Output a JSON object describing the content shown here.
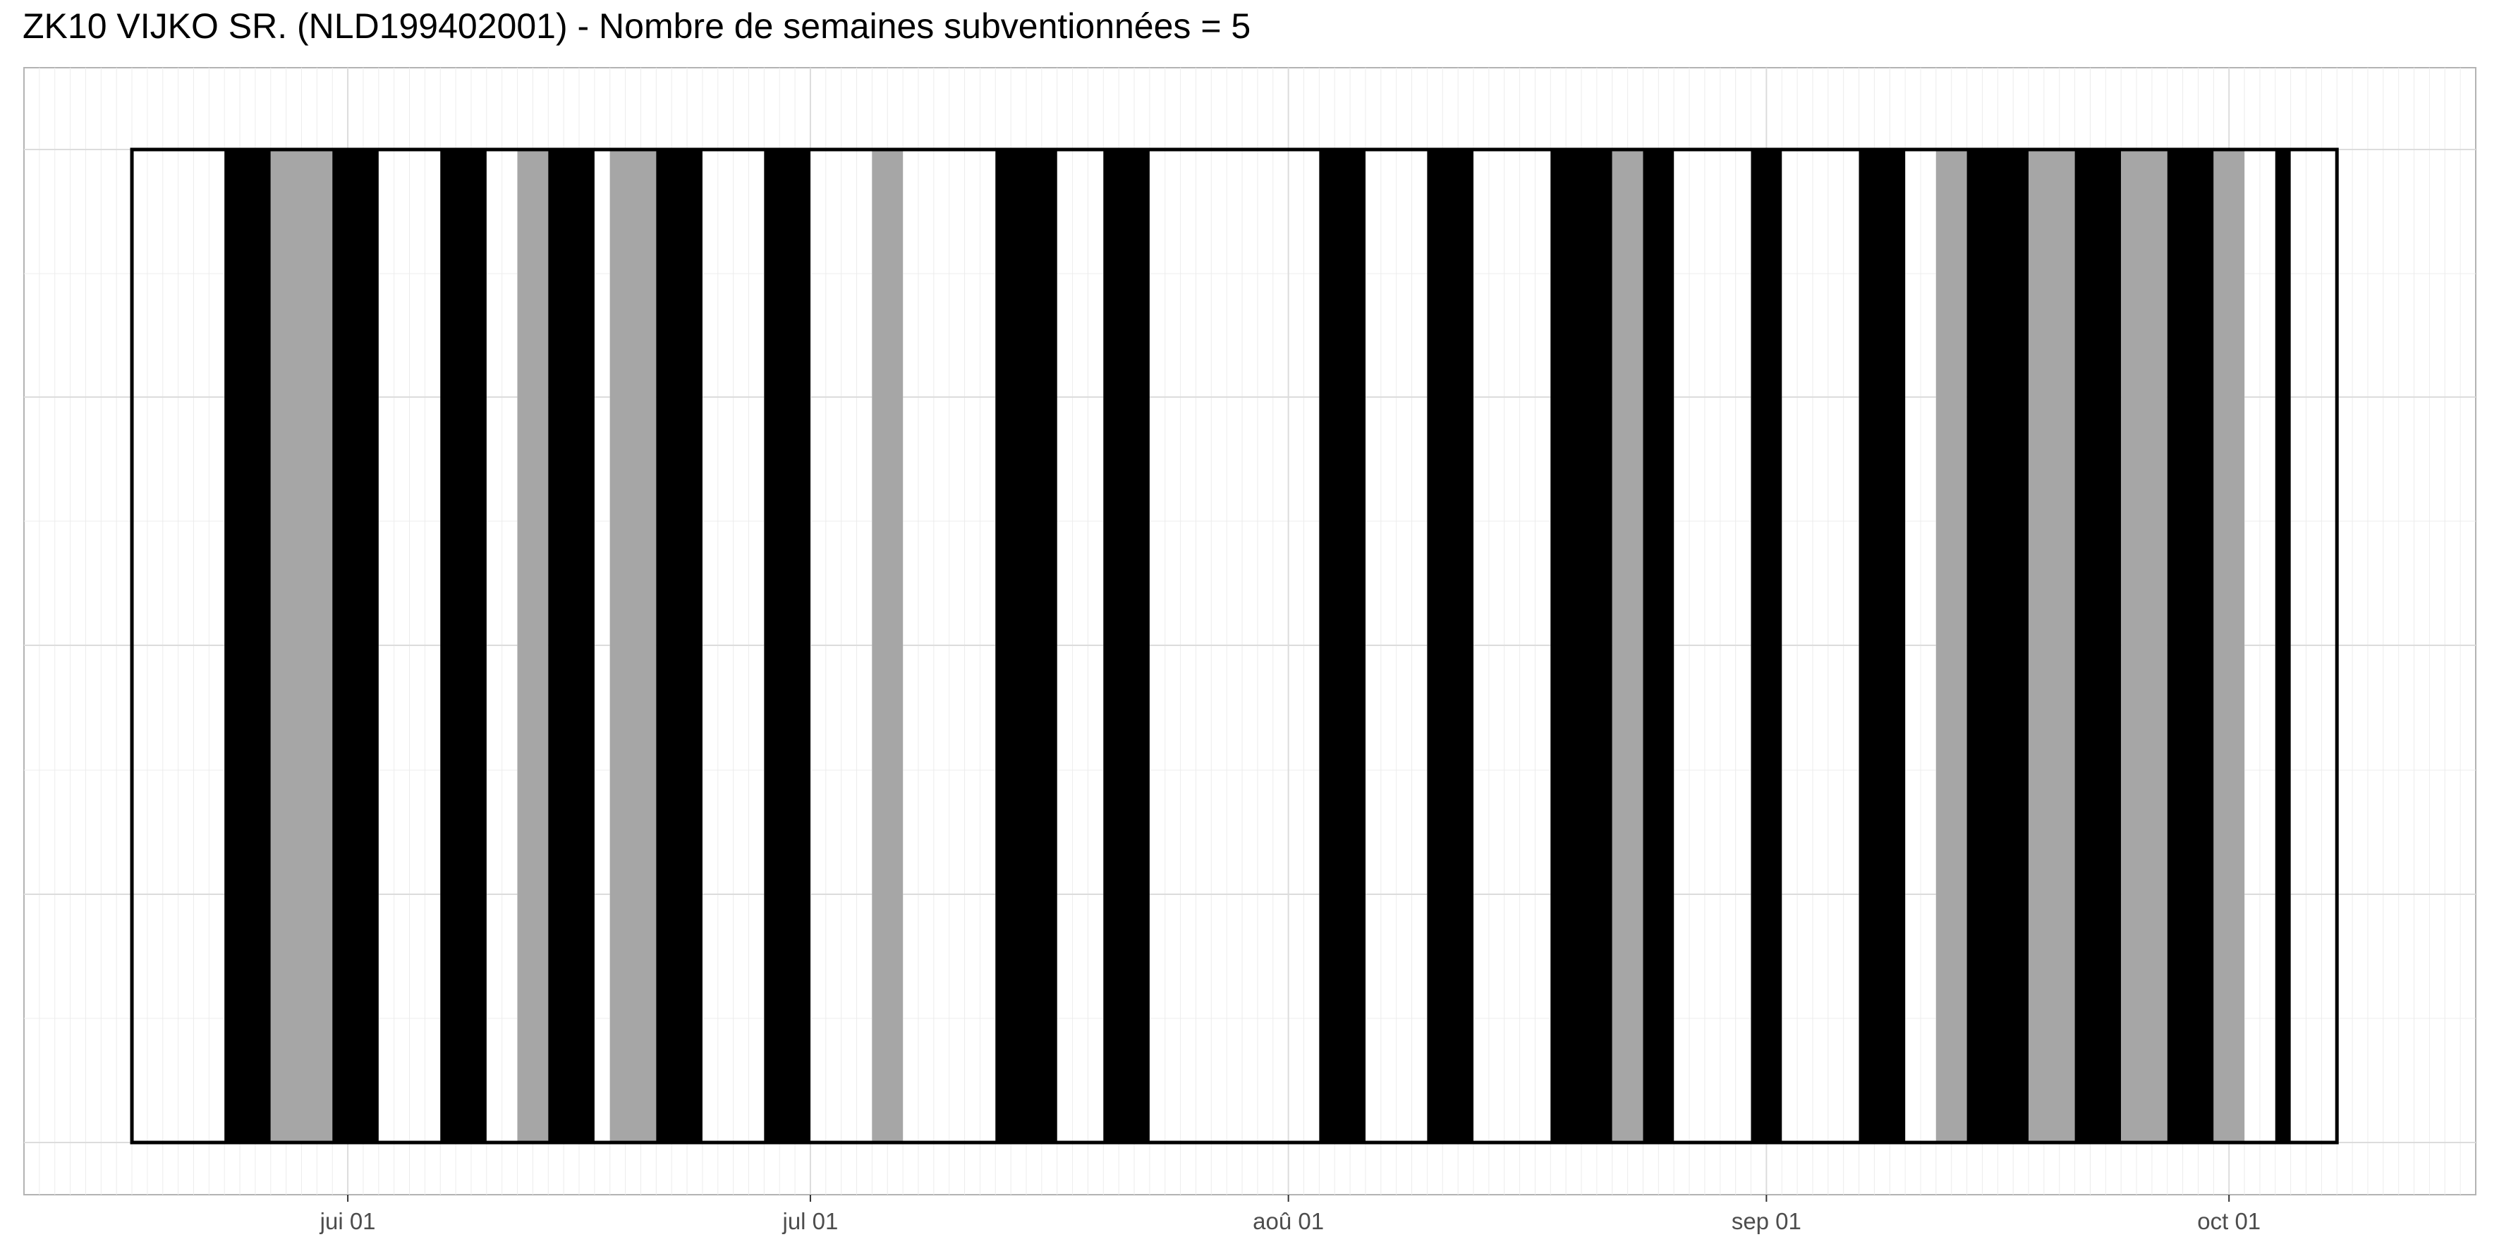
{
  "chart_data": {
    "type": "bar",
    "title": "ZK10 VIJKO SR. (NLD199402001) - Nombre de semaines subventionnées = 5",
    "xlabel": "",
    "ylabel": "",
    "x_axis": {
      "scale": "date",
      "range": [
        "2024-05-11",
        "2024-10-17"
      ],
      "ticks": [
        {
          "date": "2024-06-01",
          "label": "jui 01"
        },
        {
          "date": "2024-07-01",
          "label": "jul 01"
        },
        {
          "date": "2024-08-01",
          "label": "aoû 01"
        },
        {
          "date": "2024-09-01",
          "label": "sep 01"
        },
        {
          "date": "2024-10-01",
          "label": "oct 01"
        }
      ]
    },
    "period": {
      "start": "2024-05-18",
      "end": "2024-10-07"
    },
    "colors": {
      "black": "#000000",
      "grey": "#a6a6a6",
      "frame": "#000000"
    },
    "grid": true,
    "legend": "none",
    "days": [
      {
        "start": "2024-05-24",
        "end": "2024-05-26",
        "color": "black"
      },
      {
        "start": "2024-05-27",
        "end": "2024-05-30",
        "color": "grey"
      },
      {
        "start": "2024-05-31",
        "end": "2024-06-02",
        "color": "black"
      },
      {
        "start": "2024-06-07",
        "end": "2024-06-09",
        "color": "black"
      },
      {
        "start": "2024-06-12",
        "end": "2024-06-13",
        "color": "grey"
      },
      {
        "start": "2024-06-14",
        "end": "2024-06-16",
        "color": "black"
      },
      {
        "start": "2024-06-18",
        "end": "2024-06-20",
        "color": "grey"
      },
      {
        "start": "2024-06-21",
        "end": "2024-06-23",
        "color": "black"
      },
      {
        "start": "2024-06-28",
        "end": "2024-06-30",
        "color": "black"
      },
      {
        "start": "2024-07-05",
        "end": "2024-07-06",
        "color": "grey"
      },
      {
        "start": "2024-07-13",
        "end": "2024-07-16",
        "color": "black"
      },
      {
        "start": "2024-07-20",
        "end": "2024-07-22",
        "color": "black"
      },
      {
        "start": "2024-08-03",
        "end": "2024-08-05",
        "color": "black"
      },
      {
        "start": "2024-08-10",
        "end": "2024-08-12",
        "color": "black"
      },
      {
        "start": "2024-08-18",
        "end": "2024-08-21",
        "color": "black"
      },
      {
        "start": "2024-08-22",
        "end": "2024-08-23",
        "color": "grey"
      },
      {
        "start": "2024-08-24",
        "end": "2024-08-25",
        "color": "black"
      },
      {
        "start": "2024-08-31",
        "end": "2024-09-01",
        "color": "black"
      },
      {
        "start": "2024-09-07",
        "end": "2024-09-09",
        "color": "black"
      },
      {
        "start": "2024-09-12",
        "end": "2024-09-13",
        "color": "grey"
      },
      {
        "start": "2024-09-14",
        "end": "2024-09-17",
        "color": "black"
      },
      {
        "start": "2024-09-18",
        "end": "2024-09-20",
        "color": "grey"
      },
      {
        "start": "2024-09-21",
        "end": "2024-09-23",
        "color": "black"
      },
      {
        "start": "2024-09-24",
        "end": "2024-09-26",
        "color": "grey"
      },
      {
        "start": "2024-09-27",
        "end": "2024-09-29",
        "color": "black"
      },
      {
        "start": "2024-09-30",
        "end": "2024-10-01",
        "color": "grey"
      },
      {
        "start": "2024-10-04",
        "end": "2024-10-04",
        "color": "black"
      }
    ]
  }
}
